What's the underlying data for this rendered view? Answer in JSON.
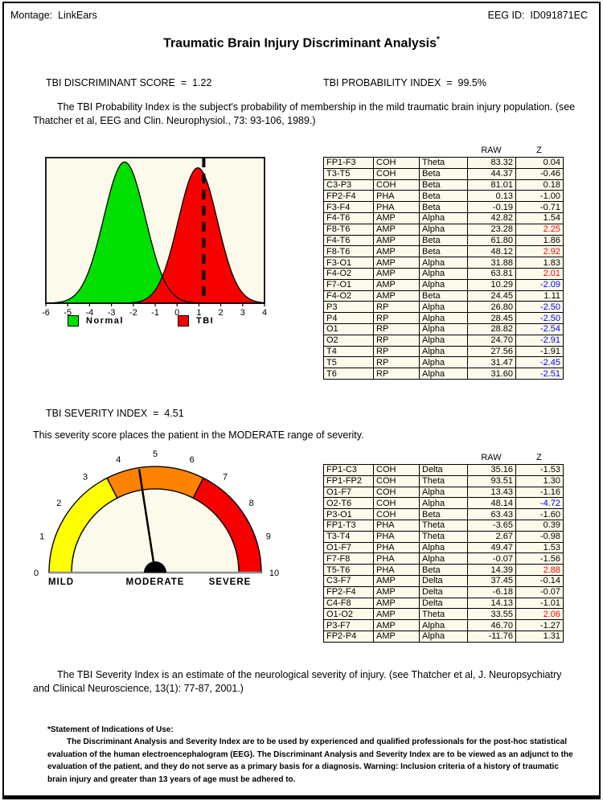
{
  "header": {
    "montage": "Montage:  LinkEars",
    "eeg_id": "EEG ID:  ID091871EC"
  },
  "title": {
    "text": "Traumatic Brain Injury Discriminant Analysis",
    "footnote_marker": "*"
  },
  "scores": {
    "discriminant": "TBI DISCRIMINANT SCORE  =  1.22",
    "probability": "TBI PROBABILITY INDEX  =  99.5%",
    "severity": "TBI SEVERITY INDEX  =  4.51"
  },
  "paragraphs": {
    "probability_note": "The TBI Probability Index is the subject's probability of membership in the mild traumatic brain injury population.  (see Thatcher et al, EEG and Clin. Neurophysiol., 73: 93-106, 1989.)",
    "severity_range_note": "This severity score places the patient in the MODERATE range of severity.",
    "severity_note": "The TBI Severity Index is an estimate of the neurological severity of injury.  (see Thatcher et al, J. Neuropsychiatry and Clinical Neuroscience, 13(1): 77-87, 2001.)"
  },
  "footnote": {
    "heading": "*Statement of Indications of Use:",
    "body": "The Discriminant Analysis and Severity Index are to be used by experienced and qualified professionals for the post-hoc statistical evaluation of the human electroencephalogram (EEG).  The Discriminant Analysis and Severity Index are to be viewed as an adjunct to the evaluation of the patient, and they do not serve as a primary basis for a diagnosis.  Warning: Inclusion criteria of a history of traumatic brain injury and greater than 13 years of age must be adhered to."
  },
  "colors": {
    "panel_bg": "#FCFAEA",
    "normal_green": "#00DF00",
    "tbi_red": "#F60000",
    "gauge_yellow": "#FFFF00",
    "gauge_orange": "#FF8200",
    "gauge_red": "#F60000",
    "z_positive_text": "#FF0000",
    "z_negative_text": "#0000FF",
    "baseline_gray": "#909090"
  },
  "chart_data": [
    {
      "type": "area",
      "title": "TBI discriminant score distributions",
      "x_range": [
        -6,
        4
      ],
      "x_ticks": [
        "-6",
        "-5",
        "-4",
        "-3",
        "-2",
        "-1",
        "0",
        "1",
        "2",
        "3",
        "4"
      ],
      "series": [
        {
          "name": "Normal",
          "color": "#00DF00",
          "mean": -2.4,
          "sd": 0.95,
          "peak": 0.97
        },
        {
          "name": "TBI",
          "color": "#F60000",
          "mean": 0.95,
          "sd": 0.9,
          "peak": 0.93
        }
      ],
      "marker": {
        "value": 1.22,
        "style": "dashed"
      },
      "legend_position": "bottom",
      "grid": false
    },
    {
      "type": "gauge",
      "min": 0,
      "max": 10,
      "value": 4.51,
      "tick_labels": [
        "0",
        "1",
        "2",
        "3",
        "4",
        "5",
        "6",
        "7",
        "8",
        "9",
        "10"
      ],
      "segments": [
        {
          "from": 0,
          "to": 3.5,
          "color": "#FFFF00"
        },
        {
          "from": 3.5,
          "to": 6.5,
          "color": "#FF8200"
        },
        {
          "from": 6.5,
          "to": 10,
          "color": "#F60000"
        }
      ],
      "zone_labels": [
        {
          "text": "MILD",
          "position": "left"
        },
        {
          "text": "MODERATE",
          "position": "center"
        },
        {
          "text": "SEVERE",
          "position": "right"
        }
      ]
    }
  ],
  "tables": {
    "discriminant": {
      "headers": [
        "RAW",
        "Z"
      ],
      "columns": [
        "site",
        "measure",
        "band",
        "raw",
        "z"
      ],
      "rows": [
        [
          "FP1-F3",
          "COH",
          "Theta",
          "83.32",
          "0.04",
          "black"
        ],
        [
          "T3-T5",
          "COH",
          "Beta",
          "44.37",
          "-0.46",
          "black"
        ],
        [
          "C3-P3",
          "COH",
          "Beta",
          "81.01",
          "0.18",
          "black"
        ],
        [
          "FP2-F4",
          "PHA",
          "Beta",
          "0.13",
          "-1.00",
          "black"
        ],
        [
          "F3-F4",
          "PHA",
          "Beta",
          "-0.19",
          "-0.71",
          "black"
        ],
        [
          "F4-T6",
          "AMP",
          "Alpha",
          "42.82",
          "1.54",
          "black"
        ],
        [
          "F8-T6",
          "AMP",
          "Alpha",
          "23.28",
          "2.25",
          "red"
        ],
        [
          "F4-T6",
          "AMP",
          "Beta",
          "61.80",
          "1.86",
          "black"
        ],
        [
          "F8-T6",
          "AMP",
          "Beta",
          "48.12",
          "2.92",
          "red"
        ],
        [
          "F3-O1",
          "AMP",
          "Alpha",
          "31.88",
          "1.83",
          "black"
        ],
        [
          "F4-O2",
          "AMP",
          "Alpha",
          "63.81",
          "2.01",
          "red"
        ],
        [
          "F7-O1",
          "AMP",
          "Alpha",
          "10.29",
          "-2.09",
          "blue"
        ],
        [
          "F4-O2",
          "AMP",
          "Beta",
          "24.45",
          "1.11",
          "black"
        ],
        [
          "P3",
          "RP",
          "Alpha",
          "26.80",
          "-2.50",
          "blue"
        ],
        [
          "P4",
          "RP",
          "Alpha",
          "28.45",
          "-2.50",
          "blue"
        ],
        [
          "O1",
          "RP",
          "Alpha",
          "28.82",
          "-2.54",
          "blue"
        ],
        [
          "O2",
          "RP",
          "Alpha",
          "24.70",
          "-2.91",
          "blue"
        ],
        [
          "T4",
          "RP",
          "Alpha",
          "27.56",
          "-1.91",
          "black"
        ],
        [
          "T5",
          "RP",
          "Alpha",
          "31.47",
          "-2.45",
          "blue"
        ],
        [
          "T6",
          "RP",
          "Alpha",
          "31.60",
          "-2.51",
          "blue"
        ]
      ]
    },
    "severity": {
      "headers": [
        "RAW",
        "Z"
      ],
      "columns": [
        "site",
        "measure",
        "band",
        "raw",
        "z"
      ],
      "rows": [
        [
          "FP1-C3",
          "COH",
          "Delta",
          "35.16",
          "-1.53",
          "black"
        ],
        [
          "FP1-FP2",
          "COH",
          "Theta",
          "93.51",
          "1.30",
          "black"
        ],
        [
          "O1-F7",
          "COH",
          "Alpha",
          "13.43",
          "-1.16",
          "black"
        ],
        [
          "O2-T6",
          "COH",
          "Alpha",
          "48.14",
          "-4.72",
          "blue"
        ],
        [
          "P3-O1",
          "COH",
          "Beta",
          "63.43",
          "-1.60",
          "black"
        ],
        [
          "FP1-T3",
          "PHA",
          "Theta",
          "-3.65",
          "0.39",
          "black"
        ],
        [
          "T3-T4",
          "PHA",
          "Theta",
          "2.67",
          "-0.98",
          "black"
        ],
        [
          "O1-F7",
          "PHA",
          "Alpha",
          "49.47",
          "1.53",
          "black"
        ],
        [
          "F7-F8",
          "PHA",
          "Alpha",
          "-0.07",
          "-1.56",
          "black"
        ],
        [
          "T5-T6",
          "PHA",
          "Beta",
          "14.39",
          "2.88",
          "red"
        ],
        [
          "C3-F7",
          "AMP",
          "Delta",
          "37.45",
          "-0.14",
          "black"
        ],
        [
          "FP2-F4",
          "AMP",
          "Delta",
          "-6.18",
          "-0.07",
          "black"
        ],
        [
          "C4-F8",
          "AMP",
          "Delta",
          "14.13",
          "-1.01",
          "black"
        ],
        [
          "O1-O2",
          "AMP",
          "Theta",
          "33.55",
          "2.06",
          "red"
        ],
        [
          "P3-F7",
          "AMP",
          "Alpha",
          "46.70",
          "-1.27",
          "black"
        ],
        [
          "FP2-P4",
          "AMP",
          "Alpha",
          "-11.76",
          "1.31",
          "black"
        ]
      ]
    }
  }
}
